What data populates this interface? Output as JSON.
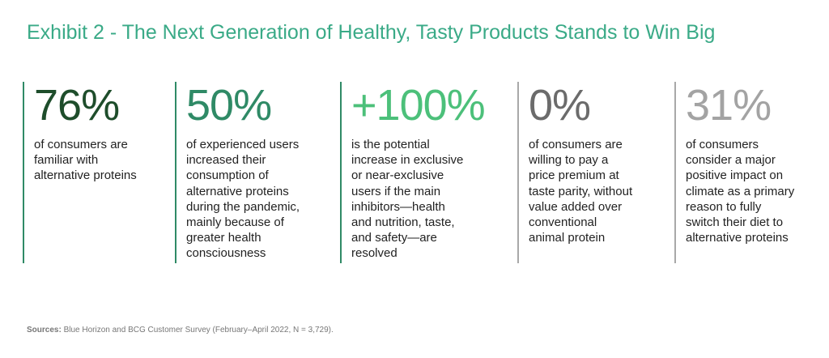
{
  "title": "Exhibit 2 - The Next Generation of Healthy, Tasty Products Stands to Win Big",
  "stats": [
    {
      "value": "76%",
      "color": "#1e4d2b",
      "lines": [
        "of consumers are",
        "familiar with",
        "alternative proteins"
      ]
    },
    {
      "value": "50%",
      "color": "#2f8a66",
      "lines": [
        "of experienced users",
        "increased their",
        "consumption of",
        "alternative proteins",
        "during the pandemic,",
        "mainly because of",
        "greater health",
        "consciousness"
      ]
    },
    {
      "value": "+100%",
      "color": "#4cc07a",
      "lines": [
        "is the potential",
        "increase in exclusive",
        "or near-exclusive",
        "users if the main",
        "inhibitors—health",
        "and nutrition, taste,",
        "and safety—are",
        "resolved"
      ]
    },
    {
      "value": "0%",
      "color": "#6b6b6b",
      "lines": [
        "of consumers are",
        "willing to pay a",
        "price premium at",
        "taste parity, without",
        "value added over",
        "conventional",
        "animal protein"
      ]
    },
    {
      "value": "31%",
      "color": "#a3a3a3",
      "lines": [
        "of consumers",
        "consider a major",
        "positive impact on",
        "climate as a primary",
        "reason to fully",
        "switch  their diet to",
        "alternative proteins"
      ]
    }
  ],
  "source": {
    "label": "Sources:",
    "text": " Blue Horizon and BCG Customer Survey (February–April 2022, N = 3,729)."
  }
}
